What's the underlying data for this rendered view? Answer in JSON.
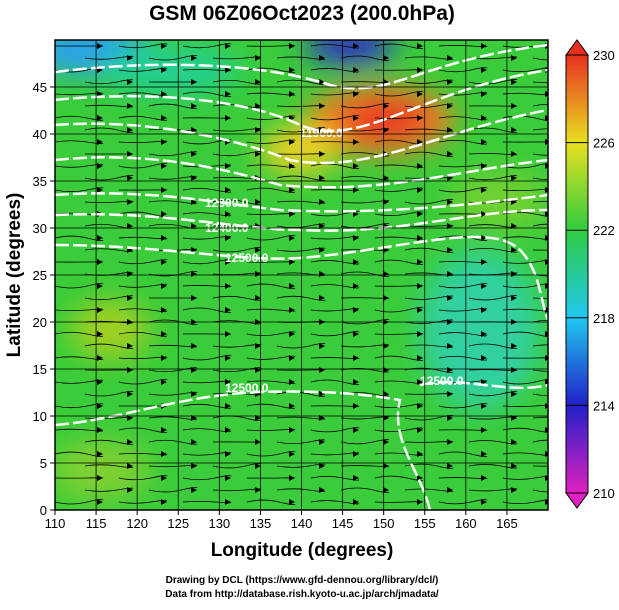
{
  "chart_data": {
    "type": "contour",
    "title": "GSM 06Z06Oct2023 (200.0hPa)",
    "x_label": "Longitude (degrees)",
    "y_label": "Latitude  (degrees)",
    "xlim": [
      110,
      170
    ],
    "xticks": [
      110,
      115,
      120,
      125,
      130,
      135,
      140,
      145,
      150,
      155,
      160,
      165
    ],
    "ylim": [
      0,
      50
    ],
    "yticks": [
      0,
      5,
      10,
      15,
      20,
      25,
      30,
      35,
      40,
      45
    ],
    "grid": true,
    "colorbar": {
      "lim": [
        210,
        230
      ],
      "ticks": [
        210,
        214,
        218,
        222,
        226,
        230
      ]
    },
    "contour_labels": [
      "11900.0",
      "12300.0",
      "12400.0",
      "12500.0",
      "12500.0",
      "12500.0"
    ],
    "footer": [
      "Drawing by DCL (https://www.gfd-dennou.org/library/dcl/)",
      "Data from http://database.rish.kyoto-u.ac.jp/arch/jmadata/"
    ]
  }
}
